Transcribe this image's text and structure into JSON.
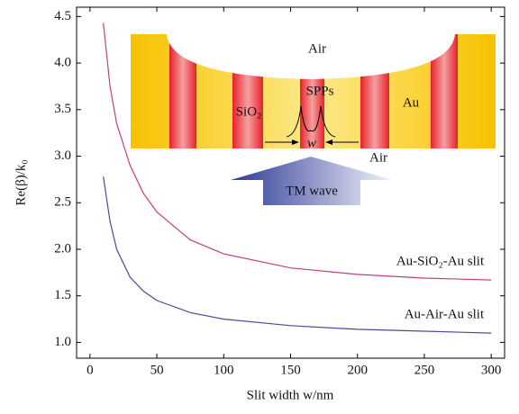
{
  "chart_data": {
    "type": "line",
    "x_label": "Slit width w/nm",
    "y_label": "Re(β)/k₀",
    "xlim": [
      -10,
      310
    ],
    "xticks": [
      0,
      50,
      100,
      150,
      200,
      250,
      300
    ],
    "ylim": [
      0.83,
      4.6
    ],
    "yticks": [
      {
        "value": 1,
        "label": "1.0"
      },
      1.5,
      {
        "value": 2,
        "label": "2.0"
      },
      2.5,
      {
        "value": 3,
        "label": "3.0"
      },
      3.5,
      {
        "value": 4,
        "label": "4.0"
      },
      4.5
    ],
    "series": [
      {
        "name": "Au-SiO₂-Au slit",
        "color": "#c0407f",
        "x": [
          10,
          15,
          20,
          30,
          40,
          50,
          75,
          100,
          150,
          200,
          250,
          300
        ],
        "values": [
          4.43,
          3.75,
          3.35,
          2.9,
          2.6,
          2.4,
          2.1,
          1.95,
          1.8,
          1.73,
          1.69,
          1.67
        ]
      },
      {
        "name": "Au-Air-Au slit",
        "color": "#4a4a9a",
        "x": [
          10,
          15,
          20,
          30,
          40,
          50,
          75,
          100,
          150,
          200,
          250,
          300
        ],
        "values": [
          2.78,
          2.3,
          2.0,
          1.7,
          1.55,
          1.45,
          1.32,
          1.25,
          1.18,
          1.14,
          1.12,
          1.1
        ]
      }
    ],
    "inset": {
      "air_top": "Air",
      "sio2": "SiO₂",
      "spps": "SPPs",
      "au": "Au",
      "w": "w",
      "air_bottom": "Air",
      "wave": "TM wave"
    }
  }
}
